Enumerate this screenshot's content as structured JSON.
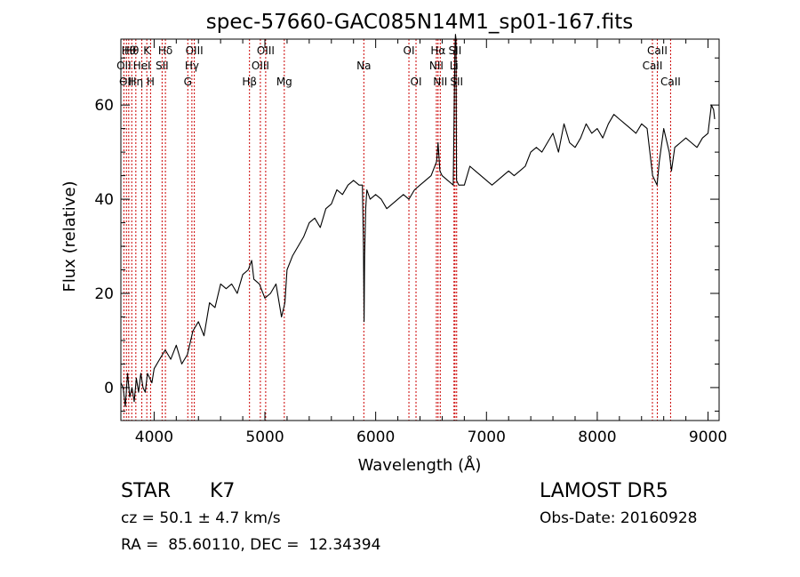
{
  "chart_data": {
    "type": "line",
    "title": "spec-57660-GAC085N14M1_sp01-167.fits",
    "xlabel": "Wavelength (Å)",
    "ylabel": "Flux (relative)",
    "xlim": [
      3700,
      9100
    ],
    "ylim": [
      -7,
      74
    ],
    "xticks": [
      4000,
      5000,
      6000,
      7000,
      8000,
      9000
    ],
    "yticks": [
      0,
      20,
      40,
      60
    ],
    "grid": false,
    "line_color": "#000000",
    "marker_color": "#cc0000",
    "line_markers": [
      {
        "wavelength": 3727,
        "label": "OII",
        "row": 2
      },
      {
        "wavelength": 3750,
        "label": "OII",
        "row": 3
      },
      {
        "wavelength": 3771,
        "label": "Hθ",
        "row": 1
      },
      {
        "wavelength": 3798,
        "label": "Hθ",
        "row": 1
      },
      {
        "wavelength": 3835,
        "label": "Hη",
        "row": 3
      },
      {
        "wavelength": 3889,
        "label": "HeI",
        "row": 2
      },
      {
        "wavelength": 3934,
        "label": "K",
        "row": 1
      },
      {
        "wavelength": 3968,
        "label": "H",
        "row": 3
      },
      {
        "wavelength": 4072,
        "label": "SII",
        "row": 2
      },
      {
        "wavelength": 4102,
        "label": "Hδ",
        "row": 1
      },
      {
        "wavelength": 4304,
        "label": "G",
        "row": 3
      },
      {
        "wavelength": 4341,
        "label": "Hγ",
        "row": 2
      },
      {
        "wavelength": 4363,
        "label": "OIII",
        "row": 1
      },
      {
        "wavelength": 4861,
        "label": "Hβ",
        "row": 3
      },
      {
        "wavelength": 4959,
        "label": "OIII",
        "row": 2
      },
      {
        "wavelength": 5007,
        "label": "OIII",
        "row": 1
      },
      {
        "wavelength": 5175,
        "label": "Mg",
        "row": 3
      },
      {
        "wavelength": 5893,
        "label": "Na",
        "row": 2
      },
      {
        "wavelength": 6300,
        "label": "OI",
        "row": 1
      },
      {
        "wavelength": 6364,
        "label": "OI",
        "row": 3
      },
      {
        "wavelength": 6548,
        "label": "NII",
        "row": 2
      },
      {
        "wavelength": 6563,
        "label": "Hα",
        "row": 1
      },
      {
        "wavelength": 6583,
        "label": "NII",
        "row": 3
      },
      {
        "wavelength": 6707,
        "label": "Li",
        "row": 2
      },
      {
        "wavelength": 6716,
        "label": "SII",
        "row": 1
      },
      {
        "wavelength": 6731,
        "label": "SII",
        "row": 3
      },
      {
        "wavelength": 8498,
        "label": "CaII",
        "row": 2
      },
      {
        "wavelength": 8542,
        "label": "CaII",
        "row": 1
      },
      {
        "wavelength": 8662,
        "label": "CaII",
        "row": 3
      }
    ],
    "series": [
      {
        "x": [
          3700,
          3720,
          3740,
          3760,
          3780,
          3800,
          3820,
          3840,
          3860,
          3880,
          3900,
          3920,
          3940,
          3960,
          3980,
          4000,
          4050,
          4100,
          4150,
          4200,
          4250,
          4300,
          4350,
          4400,
          4450,
          4500,
          4550,
          4600,
          4650,
          4700,
          4750,
          4800,
          4850,
          4880,
          4900,
          4950,
          5000,
          5050,
          5100,
          5150,
          5180,
          5200,
          5250,
          5300,
          5350,
          5400,
          5450,
          5500,
          5550,
          5600,
          5650,
          5700,
          5750,
          5800,
          5850,
          5880,
          5890,
          5895,
          5900,
          5910,
          5920,
          5950,
          6000,
          6050,
          6100,
          6150,
          6200,
          6250,
          6300,
          6350,
          6400,
          6450,
          6500,
          6550,
          6563,
          6580,
          6600,
          6650,
          6700,
          6715,
          6720,
          6725,
          6730,
          6750,
          6800,
          6850,
          6900,
          6950,
          7000,
          7050,
          7100,
          7150,
          7200,
          7250,
          7300,
          7350,
          7400,
          7450,
          7500,
          7550,
          7600,
          7650,
          7700,
          7750,
          7800,
          7850,
          7900,
          7950,
          8000,
          8050,
          8100,
          8150,
          8200,
          8250,
          8300,
          8350,
          8400,
          8450,
          8500,
          8540,
          8560,
          8600,
          8650,
          8670,
          8700,
          8750,
          8800,
          8850,
          8900,
          8950,
          9000,
          9030,
          9050,
          9060
        ],
        "y": [
          1,
          0,
          -4,
          3,
          -2,
          0,
          -3,
          2,
          -1,
          3,
          0,
          -1,
          3,
          2,
          1,
          4,
          6,
          8,
          6,
          9,
          5,
          7,
          12,
          14,
          11,
          18,
          17,
          22,
          21,
          22,
          20,
          24,
          25,
          27,
          23,
          22,
          19,
          20,
          22,
          15,
          18,
          25,
          28,
          30,
          32,
          35,
          36,
          34,
          38,
          39,
          42,
          41,
          43,
          44,
          43,
          43,
          30,
          14,
          28,
          38,
          42,
          40,
          41,
          40,
          38,
          39,
          40,
          41,
          40,
          42,
          43,
          44,
          45,
          48,
          52,
          46,
          45,
          44,
          43,
          72,
          75,
          74,
          44,
          43,
          43,
          47,
          46,
          45,
          44,
          43,
          44,
          45,
          46,
          45,
          46,
          47,
          50,
          51,
          50,
          52,
          54,
          50,
          56,
          52,
          51,
          53,
          56,
          54,
          55,
          53,
          56,
          58,
          57,
          56,
          55,
          54,
          56,
          55,
          45,
          43,
          48,
          55,
          50,
          46,
          51,
          52,
          53,
          52,
          51,
          53,
          54,
          60,
          59,
          57
        ]
      }
    ]
  },
  "footer": {
    "object_class": "STAR",
    "subclass": "K7",
    "cz": "cz = 50.1 ± 4.7 km/s",
    "coords": "RA =  85.60110, DEC =  12.34394",
    "survey": "LAMOST DR5",
    "obs_date": "Obs-Date: 20160928"
  }
}
